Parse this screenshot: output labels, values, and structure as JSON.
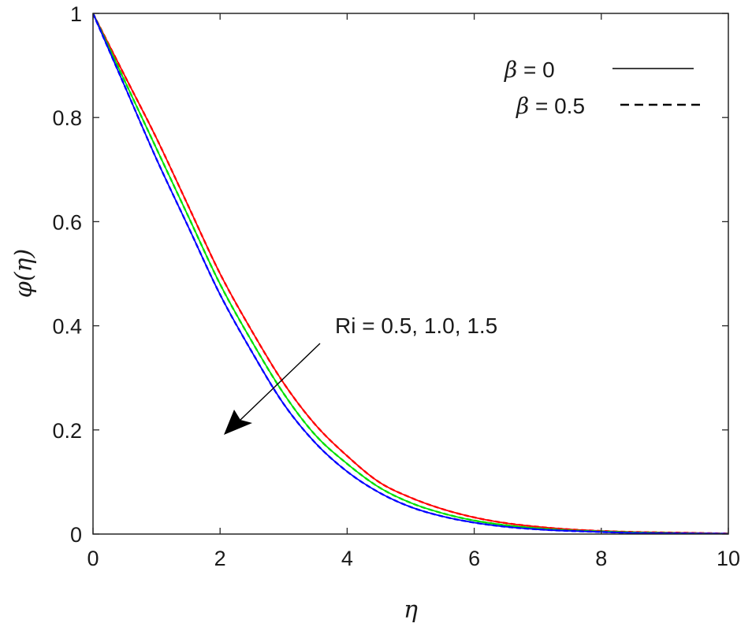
{
  "chart_data": {
    "type": "line",
    "xlabel": "η",
    "ylabel": "φ(η)",
    "xlim": [
      0,
      10
    ],
    "ylim": [
      0,
      1
    ],
    "xticks": [
      "0",
      "2",
      "4",
      "6",
      "8",
      "10"
    ],
    "yticks": [
      "0",
      "0.2",
      "0.4",
      "0.6",
      "0.8",
      "1"
    ],
    "grid": false,
    "legend": {
      "placement": "top-right",
      "entries": [
        {
          "symbol": "β",
          "text": " = 0",
          "style": "solid"
        },
        {
          "symbol": "β",
          "text": " = 0.5",
          "style": "dashed"
        }
      ]
    },
    "annotation": {
      "text": "Ri = 0.5, 1.0, 1.5",
      "arrow_direction": "down-left"
    },
    "x": [
      0,
      0.5,
      1,
      1.5,
      2,
      2.5,
      3,
      3.5,
      4,
      4.5,
      5,
      5.5,
      6,
      6.5,
      7,
      7.5,
      8,
      8.5,
      9,
      9.5,
      10
    ],
    "series": [
      {
        "color": "#ff0000",
        "style": "solid",
        "values": [
          1.0,
          0.88,
          0.76,
          0.63,
          0.5,
          0.39,
          0.29,
          0.21,
          0.15,
          0.1,
          0.07,
          0.048,
          0.032,
          0.021,
          0.014,
          0.009,
          0.006,
          0.004,
          0.003,
          0.002,
          0.001
        ]
      },
      {
        "color": "#ff0000",
        "style": "dashed",
        "values": [
          1.0,
          0.88,
          0.76,
          0.63,
          0.5,
          0.39,
          0.29,
          0.21,
          0.15,
          0.1,
          0.07,
          0.048,
          0.032,
          0.021,
          0.014,
          0.009,
          0.006,
          0.004,
          0.003,
          0.002,
          0.001
        ]
      },
      {
        "color": "#00e000",
        "style": "solid",
        "values": [
          1.0,
          0.87,
          0.74,
          0.61,
          0.48,
          0.37,
          0.27,
          0.19,
          0.135,
          0.09,
          0.06,
          0.04,
          0.026,
          0.017,
          0.011,
          0.007,
          0.005,
          0.003,
          0.002,
          0.001,
          0.0005
        ]
      },
      {
        "color": "#00e000",
        "style": "dashed",
        "values": [
          1.0,
          0.87,
          0.74,
          0.61,
          0.48,
          0.37,
          0.27,
          0.19,
          0.135,
          0.09,
          0.06,
          0.04,
          0.026,
          0.017,
          0.011,
          0.007,
          0.005,
          0.003,
          0.002,
          0.001,
          0.0005
        ]
      },
      {
        "color": "#0000ff",
        "style": "solid",
        "values": [
          1.0,
          0.86,
          0.72,
          0.59,
          0.46,
          0.35,
          0.25,
          0.175,
          0.12,
          0.08,
          0.052,
          0.034,
          0.022,
          0.014,
          0.009,
          0.006,
          0.004,
          0.002,
          0.0015,
          0.001,
          0.0005
        ]
      },
      {
        "color": "#0000ff",
        "style": "dashed",
        "values": [
          1.0,
          0.86,
          0.72,
          0.59,
          0.46,
          0.35,
          0.25,
          0.175,
          0.12,
          0.08,
          0.052,
          0.034,
          0.022,
          0.014,
          0.009,
          0.006,
          0.004,
          0.002,
          0.0015,
          0.001,
          0.0005
        ]
      }
    ]
  }
}
